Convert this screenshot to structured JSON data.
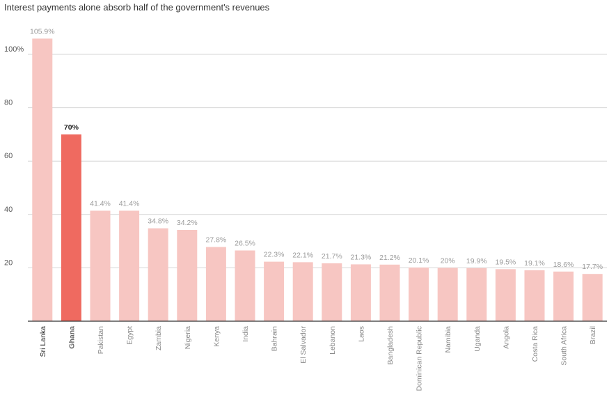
{
  "chart_data": {
    "type": "bar",
    "title": "Interest payments alone absorb half of the government's revenues",
    "categories": [
      "Sri Lanka",
      "Ghana",
      "Pakistan",
      "Egypt",
      "Zambia",
      "Nigeria",
      "Kenya",
      "India",
      "Bahrain",
      "El Salvador",
      "Lebanon",
      "Laos",
      "Bangladesh",
      "Dominican Republic",
      "Namibia",
      "Uganda",
      "Angola",
      "Costa Rica",
      "South Africa",
      "Brazil"
    ],
    "values": [
      105.9,
      70,
      41.4,
      41.4,
      34.8,
      34.2,
      27.8,
      26.5,
      22.3,
      22.1,
      21.7,
      21.3,
      21.2,
      20.1,
      20,
      19.9,
      19.5,
      19.1,
      18.6,
      17.7
    ],
    "data_labels": [
      "105.9%",
      "70%",
      "41.4%",
      "41.4%",
      "34.8%",
      "34.2%",
      "27.8%",
      "26.5%",
      "22.3%",
      "22.1%",
      "21.7%",
      "21.3%",
      "21.2%",
      "20.1%",
      "20%",
      "19.9%",
      "19.5%",
      "19.1%",
      "18.6%",
      "17.7%"
    ],
    "highlight_index": 1,
    "ylim": [
      0,
      110
    ],
    "yticks": [
      20,
      40,
      60,
      80,
      100
    ],
    "ytick_labels": [
      "20",
      "40",
      "60",
      "80",
      "100%"
    ],
    "grid": true,
    "xlabel": "",
    "ylabel": "",
    "colors": {
      "bar": "#f7c6c2",
      "highlight": "#ef6a60",
      "grid": "#d4d4d4",
      "axis": "#333333"
    }
  }
}
